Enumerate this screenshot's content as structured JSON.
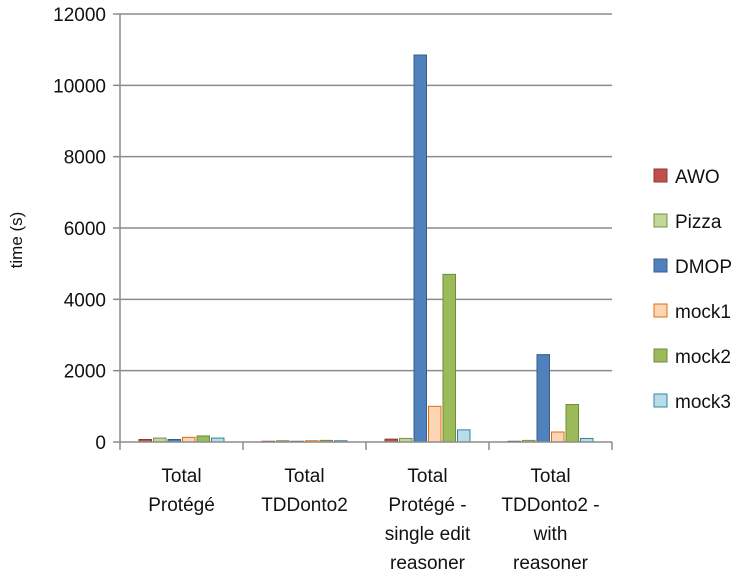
{
  "chart_data": {
    "type": "bar",
    "title": "",
    "xlabel": "",
    "ylabel": "time (s)",
    "ylim": [
      0,
      12000
    ],
    "yticks": [
      0,
      2000,
      4000,
      6000,
      8000,
      10000,
      12000
    ],
    "grid": true,
    "legend_position": "right",
    "categories": [
      [
        "Total",
        "Protégé"
      ],
      [
        "Total",
        "TDDonto2"
      ],
      [
        "Total",
        "Protégé -",
        "single edit",
        "reasoner"
      ],
      [
        "Total",
        "TDDonto2 -",
        "with",
        "reasoner"
      ]
    ],
    "series": [
      {
        "name": "AWO",
        "color": "#c0504d",
        "stroke": "#8c3836",
        "values": [
          70,
          20,
          80,
          20
        ]
      },
      {
        "name": "Pizza",
        "color": "#c3d69b",
        "stroke": "#76923c",
        "values": [
          110,
          35,
          100,
          45
        ]
      },
      {
        "name": "DMOP",
        "color": "#4f81bd",
        "stroke": "#385d8a",
        "values": [
          70,
          20,
          10850,
          2450
        ]
      },
      {
        "name": "mock1",
        "color": "#fcd5b5",
        "stroke": "#e46c0a",
        "values": [
          130,
          35,
          1000,
          280
        ]
      },
      {
        "name": "mock2",
        "color": "#9bbb59",
        "stroke": "#71893f",
        "values": [
          170,
          45,
          4700,
          1050
        ]
      },
      {
        "name": "mock3",
        "color": "#b7dee8",
        "stroke": "#31849b",
        "values": [
          110,
          35,
          340,
          100
        ]
      }
    ]
  }
}
